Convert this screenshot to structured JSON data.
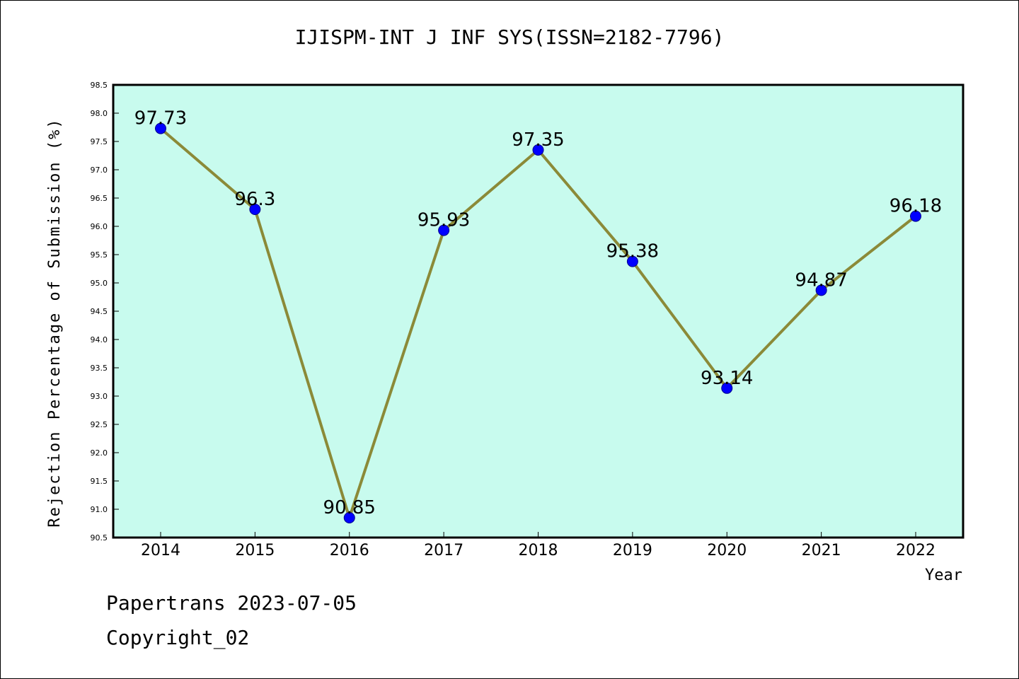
{
  "chart_data": {
    "type": "line",
    "title": "IJISPM-INT J INF SYS(ISSN=2182-7796)",
    "xlabel": "Year",
    "ylabel": "Rejection Percentage of Submission (%)",
    "categories": [
      "2014",
      "2015",
      "2016",
      "2017",
      "2018",
      "2019",
      "2020",
      "2021",
      "2022"
    ],
    "series": [
      {
        "values": [
          97.73,
          96.3,
          90.85,
          95.93,
          97.35,
          95.38,
          93.14,
          94.87,
          96.18
        ]
      }
    ],
    "data_labels": [
      "97.73",
      "96.3",
      "90.85",
      "95.93",
      "97.35",
      "95.38",
      "93.14",
      "94.87",
      "96.18"
    ],
    "ylim": [
      90.5,
      98.5
    ],
    "yticks": [
      "90.5",
      "91.0",
      "91.5",
      "92.0",
      "92.5",
      "93.0",
      "93.5",
      "94.0",
      "94.5",
      "95.0",
      "95.5",
      "96.0",
      "96.5",
      "97.0",
      "97.5",
      "98.0",
      "98.5"
    ],
    "grid": false,
    "legend": "none",
    "colors": {
      "plot_background": "#c8fbee",
      "line": "#8b8a38",
      "marker": "#0000ff"
    }
  },
  "footer": {
    "line1": "Papertrans 2023-07-05",
    "line2": "Copyright_02"
  }
}
